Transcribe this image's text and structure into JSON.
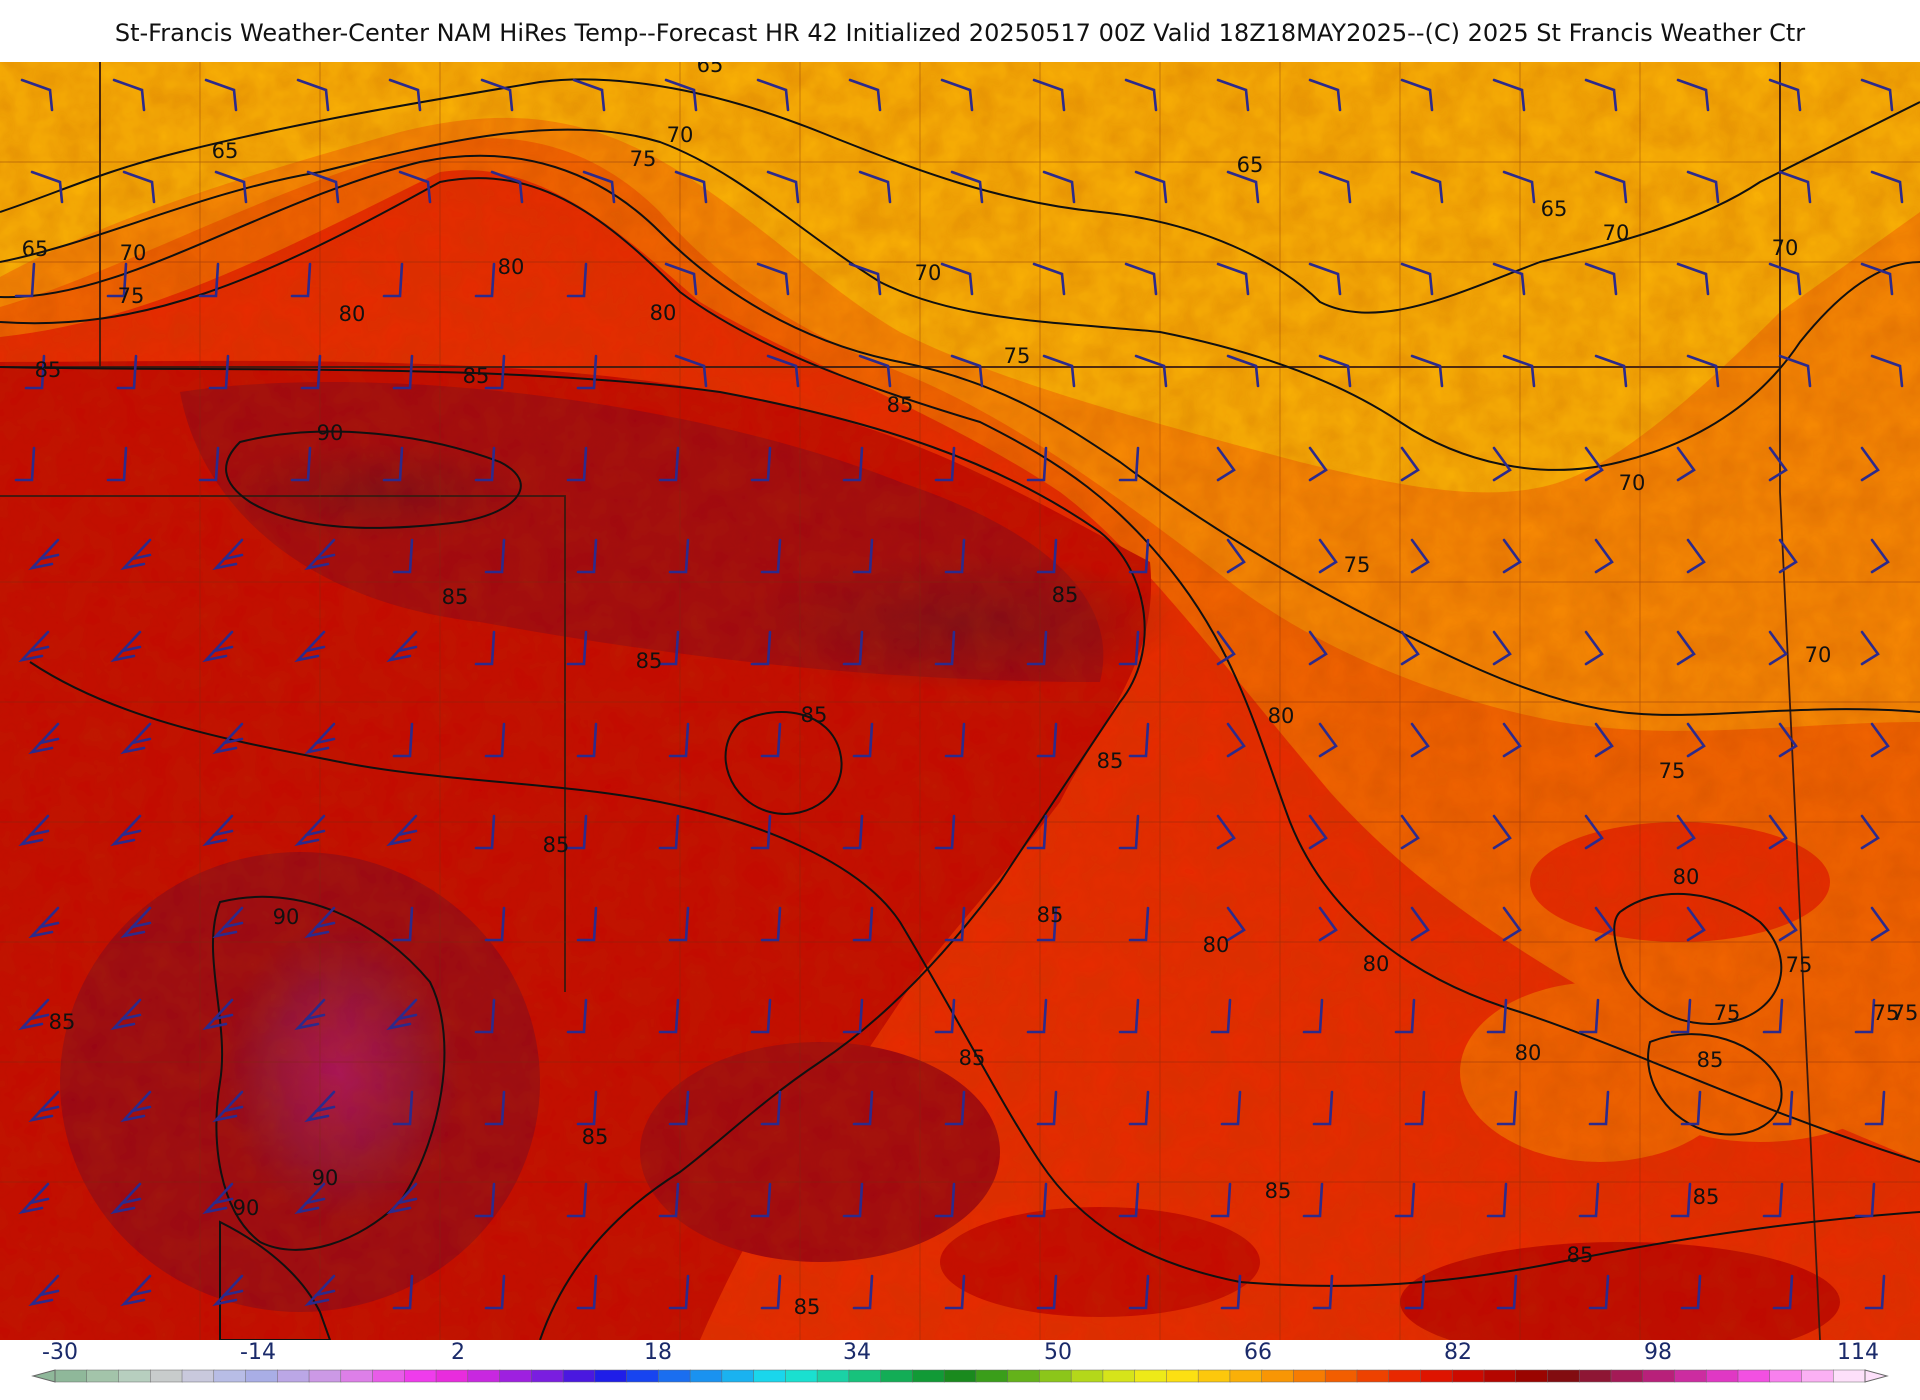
{
  "title": "St-Francis Weather-Center NAM HiRes Temp--Forecast HR 42 Initialized 20250517 00Z Valid 18Z18MAY2025--(C) 2025 St Francis Weather Ctr",
  "colorbar": {
    "ticks": [
      "-30",
      "-14",
      "2",
      "18",
      "34",
      "50",
      "66",
      "82",
      "98",
      "114"
    ],
    "colors": [
      "#8fb89a",
      "#a3c4aa",
      "#b7cfbf",
      "#c8cccc",
      "#c9c9dd",
      "#b8bde6",
      "#a9aee6",
      "#bba7e6",
      "#cc99e6",
      "#dd7fe8",
      "#e85ce8",
      "#ef3cec",
      "#e82cdd",
      "#c828e0",
      "#9e20e0",
      "#7a1ee0",
      "#4a18e0",
      "#1f1ee8",
      "#1744f0",
      "#1a6ef0",
      "#1a92f0",
      "#1ab2f0",
      "#1ad6ec",
      "#1ae0d0",
      "#1ad2a6",
      "#17c27c",
      "#13ad56",
      "#119a36",
      "#1a8a1e",
      "#3a9e1a",
      "#64b21a",
      "#8cc61a",
      "#b4d81a",
      "#d6e41a",
      "#eeea18",
      "#fce012",
      "#fcc80c",
      "#fab008",
      "#f89604",
      "#f67c02",
      "#f25e00",
      "#ee4200",
      "#e82800",
      "#de1400",
      "#cc0a00",
      "#b40600",
      "#9a0400",
      "#820c10",
      "#8e1634",
      "#a41a56",
      "#b8207a",
      "#cc2ca0",
      "#e038c4",
      "#f250e2",
      "#f880ee",
      "#fbb0f4",
      "#fde0fa"
    ]
  },
  "map": {
    "contour_labels": [
      "65",
      "65",
      "65",
      "65",
      "65",
      "70",
      "70",
      "70",
      "70",
      "70",
      "70",
      "70",
      "75",
      "75",
      "75",
      "75",
      "75",
      "75",
      "75",
      "75",
      "75",
      "80",
      "80",
      "80",
      "80",
      "80",
      "80",
      "80",
      "80",
      "85",
      "85",
      "85",
      "85",
      "85",
      "85",
      "85",
      "85",
      "85",
      "85",
      "85",
      "85",
      "85",
      "85",
      "85",
      "85",
      "85",
      "85",
      "90",
      "90",
      "90",
      "90"
    ]
  }
}
